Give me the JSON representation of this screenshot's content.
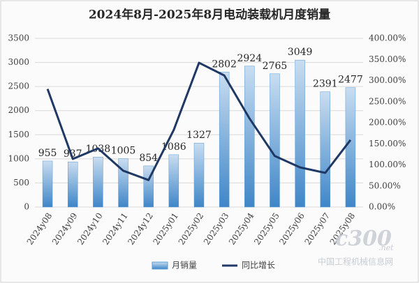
{
  "chart_data": {
    "type": "bar",
    "title": "2024年8月-2025年8月电动装载机月度销量",
    "categories": [
      "2024y08",
      "2024y09",
      "2024y10",
      "2024y11",
      "2024y12",
      "2025y01",
      "2025y02",
      "2025y03",
      "2025y04",
      "2025y05",
      "2025y06",
      "2025y07",
      "2025y08"
    ],
    "series": [
      {
        "name": "月销量",
        "type": "bar",
        "color": "#5b9bd5",
        "values": [
          955,
          937,
          1038,
          1005,
          854,
          1086,
          1327,
          2802,
          2924,
          2765,
          3049,
          2391,
          2477
        ]
      },
      {
        "name": "同比增长",
        "type": "line",
        "axis": "y2",
        "color": "#1f3864",
        "values": [
          280,
          114,
          139,
          86,
          64,
          183,
          342,
          312,
          210,
          121,
          94,
          81,
          159
        ]
      }
    ],
    "ylim": [
      0,
      3500
    ],
    "yticks": [
      0,
      500,
      1000,
      1500,
      2000,
      2500,
      3000,
      3500
    ],
    "y2lim": [
      0,
      400
    ],
    "y2ticks": [
      {
        "value": 0,
        "label": "0.00%"
      },
      {
        "value": 50,
        "label": "50.00%"
      },
      {
        "value": 100,
        "label": "100.00%"
      },
      {
        "value": 150,
        "label": "150.00%"
      },
      {
        "value": 200,
        "label": "200.00%"
      },
      {
        "value": 250,
        "label": "250.00%"
      },
      {
        "value": 300,
        "label": "300.00%"
      },
      {
        "value": 350,
        "label": "350.00%"
      },
      {
        "value": 400,
        "label": "400.00%"
      }
    ],
    "grid": true,
    "legend": "bottom",
    "watermark": [
      "c300",
      ".net",
      "中国工程机械信息网"
    ]
  }
}
